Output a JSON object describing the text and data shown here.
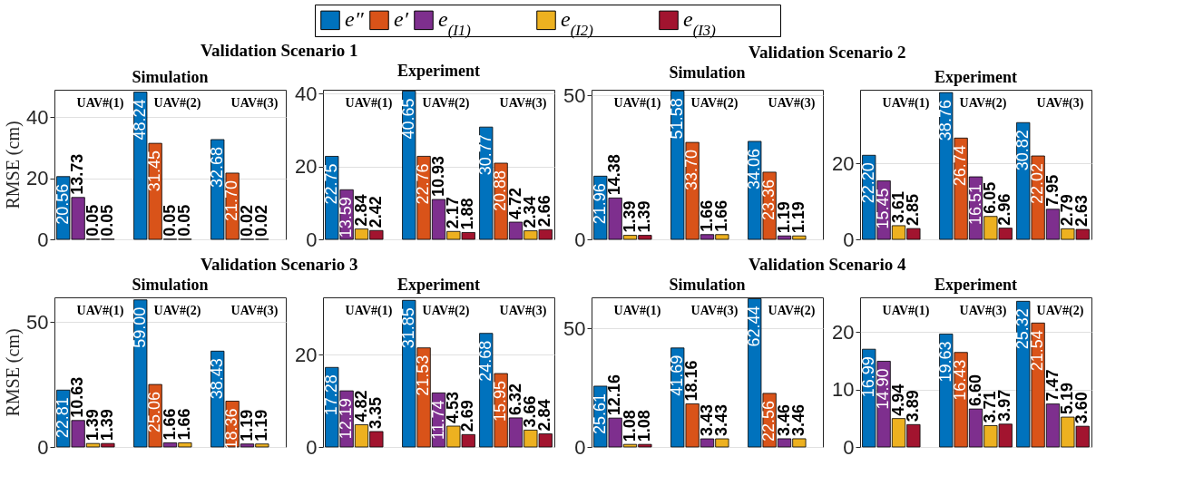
{
  "chart_data": [
    {
      "type": "bar",
      "title": "Simulation",
      "annotations": [
        "Validation Scenario 1"
      ],
      "ylabel": "RMSE (cm)",
      "categories": [
        "UAV#(1)",
        "UAV#(2)",
        "UAV#(3)"
      ],
      "ylim": [
        0,
        49
      ],
      "yticks": [
        0,
        20,
        40
      ],
      "grid": "y",
      "legend": "top",
      "series": [
        {
          "name": "e″",
          "color": "#0072bd",
          "values": [
            20.56,
            48.24,
            32.68
          ],
          "value_labels": [
            "20.56",
            "48.24",
            "32.68"
          ]
        },
        {
          "name": "e′",
          "color": "#d95319",
          "values": [
            null,
            31.45,
            21.7
          ],
          "value_labels": [
            null,
            "31.45",
            "21.70"
          ]
        },
        {
          "name": "e$_{(I1)}$",
          "color": "#7e2f8e",
          "values": [
            13.73,
            0.05,
            0.02
          ],
          "value_labels": [
            "13.73",
            "0.05",
            "0.02"
          ]
        },
        {
          "name": "e$_{(I2)}$",
          "color": "#edb120",
          "values": [
            0.05,
            0.05,
            0.02
          ],
          "value_labels": [
            "0.05",
            "0.05",
            "0.02"
          ]
        },
        {
          "name": "e$_{(I3)}$",
          "color": "#a2142f",
          "values": [
            0.05,
            null,
            null
          ],
          "value_labels": [
            "0.05",
            null,
            null
          ]
        }
      ]
    },
    {
      "type": "bar",
      "title": "Experiment",
      "categories": [
        "UAV#(1)",
        "UAV#(2)",
        "UAV#(3)"
      ],
      "ylim": [
        0,
        41
      ],
      "yticks": [
        0,
        20,
        40
      ],
      "grid": "y",
      "series": [
        {
          "name": "e″",
          "color": "#0072bd",
          "values": [
            22.75,
            40.65,
            30.77
          ],
          "value_labels": [
            "22.75",
            "40.65",
            "30.77"
          ]
        },
        {
          "name": "e′",
          "color": "#d95319",
          "values": [
            null,
            22.76,
            20.88
          ],
          "value_labels": [
            null,
            "22.76",
            "20.88"
          ]
        },
        {
          "name": "e$_{(I1)}$",
          "color": "#7e2f8e",
          "values": [
            13.59,
            10.93,
            4.72
          ],
          "value_labels": [
            "13.59",
            "10.93",
            "4.72"
          ]
        },
        {
          "name": "e$_{(I2)}$",
          "color": "#edb120",
          "values": [
            2.84,
            2.17,
            2.34
          ],
          "value_labels": [
            "2.84",
            "2.17",
            "2.34"
          ]
        },
        {
          "name": "e$_{(I3)}$",
          "color": "#a2142f",
          "values": [
            2.42,
            1.88,
            2.66
          ],
          "value_labels": [
            "2.42",
            "1.88",
            "2.66"
          ]
        }
      ]
    },
    {
      "type": "bar",
      "title": "Simulation",
      "annotations": [
        "Validation Scenario 2"
      ],
      "categories": [
        "UAV#(1)",
        "UAV#(2)",
        "UAV#(3)"
      ],
      "ylim": [
        0,
        52
      ],
      "yticks": [
        0,
        50
      ],
      "grid": "y",
      "series": [
        {
          "name": "e″",
          "color": "#0072bd",
          "values": [
            21.96,
            51.58,
            34.06
          ],
          "value_labels": [
            "21.96",
            "51.58",
            "34.06"
          ]
        },
        {
          "name": "e′",
          "color": "#d95319",
          "values": [
            null,
            33.7,
            23.36
          ],
          "value_labels": [
            null,
            "33.70",
            "23.36"
          ]
        },
        {
          "name": "e$_{(I1)}$",
          "color": "#7e2f8e",
          "values": [
            14.38,
            1.66,
            1.19
          ],
          "value_labels": [
            "14.38",
            "1.66",
            "1.19"
          ]
        },
        {
          "name": "e$_{(I2)}$",
          "color": "#edb120",
          "values": [
            1.39,
            1.66,
            1.19
          ],
          "value_labels": [
            "1.39",
            "1.66",
            "1.19"
          ]
        },
        {
          "name": "e$_{(I3)}$",
          "color": "#a2142f",
          "values": [
            1.39,
            null,
            null
          ],
          "value_labels": [
            "1.39",
            null,
            null
          ]
        }
      ]
    },
    {
      "type": "bar",
      "title": "Experiment",
      "categories": [
        "UAV#(1)",
        "UAV#(2)",
        "UAV#(3)"
      ],
      "ylim": [
        0,
        39.5
      ],
      "yticks": [
        0,
        20
      ],
      "grid": "y",
      "series": [
        {
          "name": "e″",
          "color": "#0072bd",
          "values": [
            22.2,
            38.76,
            30.82
          ],
          "value_labels": [
            "22.20",
            "38.76",
            "30.82"
          ]
        },
        {
          "name": "e′",
          "color": "#d95319",
          "values": [
            null,
            26.74,
            22.02
          ],
          "value_labels": [
            null,
            "26.74",
            "22.02"
          ]
        },
        {
          "name": "e$_{(I1)}$",
          "color": "#7e2f8e",
          "values": [
            15.45,
            16.51,
            7.95
          ],
          "value_labels": [
            "15.45",
            "16.51",
            "7.95"
          ]
        },
        {
          "name": "e$_{(I2)}$",
          "color": "#edb120",
          "values": [
            3.61,
            6.05,
            2.79
          ],
          "value_labels": [
            "3.61",
            "6.05",
            "2.79"
          ]
        },
        {
          "name": "e$_{(I3)}$",
          "color": "#a2142f",
          "values": [
            2.85,
            2.96,
            2.63
          ],
          "value_labels": [
            "2.85",
            "2.96",
            "2.63"
          ]
        }
      ]
    },
    {
      "type": "bar",
      "title": "Simulation",
      "annotations": [
        "Validation Scenario 3"
      ],
      "ylabel": "RMSE (cm)",
      "categories": [
        "UAV#(1)",
        "UAV#(2)",
        "UAV#(3)"
      ],
      "ylim": [
        0,
        60
      ],
      "yticks": [
        0,
        50
      ],
      "grid": "y",
      "series": [
        {
          "name": "e″",
          "color": "#0072bd",
          "values": [
            22.81,
            59.0,
            38.43
          ],
          "value_labels": [
            "22.81",
            "59.00",
            "38.43"
          ]
        },
        {
          "name": "e′",
          "color": "#d95319",
          "values": [
            null,
            25.06,
            18.36
          ],
          "value_labels": [
            null,
            "25.06",
            "18.36"
          ]
        },
        {
          "name": "e$_{(I1)}$",
          "color": "#7e2f8e",
          "values": [
            10.63,
            1.66,
            1.19
          ],
          "value_labels": [
            "10.63",
            "1.66",
            "1.19"
          ]
        },
        {
          "name": "e$_{(I2)}$",
          "color": "#edb120",
          "values": [
            1.39,
            1.66,
            1.19
          ],
          "value_labels": [
            "1.39",
            "1.66",
            "1.19"
          ]
        },
        {
          "name": "e$_{(I3)}$",
          "color": "#a2142f",
          "values": [
            1.39,
            null,
            null
          ],
          "value_labels": [
            "1.39",
            null,
            null
          ]
        }
      ]
    },
    {
      "type": "bar",
      "title": "Experiment",
      "categories": [
        "UAV#(1)",
        "UAV#(2)",
        "UAV#(3)"
      ],
      "ylim": [
        0,
        32.5
      ],
      "yticks": [
        0,
        20
      ],
      "grid": "y",
      "series": [
        {
          "name": "e″",
          "color": "#0072bd",
          "values": [
            17.28,
            31.85,
            24.68
          ],
          "value_labels": [
            "17.28",
            "31.85",
            "24.68"
          ]
        },
        {
          "name": "e′",
          "color": "#d95319",
          "values": [
            null,
            21.53,
            15.95
          ],
          "value_labels": [
            null,
            "21.53",
            "15.95"
          ]
        },
        {
          "name": "e$_{(I1)}$",
          "color": "#7e2f8e",
          "values": [
            12.19,
            11.74,
            6.32
          ],
          "value_labels": [
            "12.19",
            "11.74",
            "6.32"
          ]
        },
        {
          "name": "e$_{(I2)}$",
          "color": "#edb120",
          "values": [
            4.82,
            4.53,
            3.66
          ],
          "value_labels": [
            "4.82",
            "4.53",
            "3.66"
          ]
        },
        {
          "name": "e$_{(I3)}$",
          "color": "#a2142f",
          "values": [
            3.35,
            2.69,
            2.84
          ],
          "value_labels": [
            "3.35",
            "2.69",
            "2.84"
          ]
        }
      ]
    },
    {
      "type": "bar",
      "title": "Simulation",
      "annotations": [
        "Validation Scenario 4"
      ],
      "categories": [
        "UAV#(1)",
        "UAV#(3)",
        "UAV#(2)"
      ],
      "ylim": [
        0,
        63
      ],
      "yticks": [
        0,
        50
      ],
      "grid": "y",
      "series": [
        {
          "name": "e″",
          "color": "#0072bd",
          "values": [
            25.61,
            41.69,
            62.44
          ],
          "value_labels": [
            "25.61",
            "41.69",
            "62.44"
          ]
        },
        {
          "name": "e′",
          "color": "#d95319",
          "values": [
            null,
            18.16,
            22.56
          ],
          "value_labels": [
            null,
            "18.16",
            "22.56"
          ]
        },
        {
          "name": "e$_{(I1)}$",
          "color": "#7e2f8e",
          "values": [
            12.16,
            3.43,
            3.46
          ],
          "value_labels": [
            "12.16",
            "3.43",
            "3.46"
          ]
        },
        {
          "name": "e$_{(I2)}$",
          "color": "#edb120",
          "values": [
            1.08,
            3.43,
            3.46
          ],
          "value_labels": [
            "1.08",
            "3.43",
            "3.46"
          ]
        },
        {
          "name": "e$_{(I3)}$",
          "color": "#a2142f",
          "values": [
            1.08,
            null,
            null
          ],
          "value_labels": [
            "1.08",
            null,
            null
          ]
        }
      ]
    },
    {
      "type": "bar",
      "title": "Experiment",
      "categories": [
        "UAV#(1)",
        "UAV#(3)",
        "UAV#(2)"
      ],
      "ylim": [
        0,
        26
      ],
      "yticks": [
        0,
        10,
        20
      ],
      "grid": "y",
      "series": [
        {
          "name": "e″",
          "color": "#0072bd",
          "values": [
            16.99,
            19.63,
            25.32
          ],
          "value_labels": [
            "16.99",
            "19.63",
            "25.32"
          ]
        },
        {
          "name": "e′",
          "color": "#d95319",
          "values": [
            null,
            16.43,
            21.54
          ],
          "value_labels": [
            null,
            "16.43",
            "21.54"
          ]
        },
        {
          "name": "e$_{(I1)}$",
          "color": "#7e2f8e",
          "values": [
            14.9,
            6.6,
            7.47
          ],
          "value_labels": [
            "14.90",
            "6.60",
            "7.47"
          ]
        },
        {
          "name": "e$_{(I2)}$",
          "color": "#edb120",
          "values": [
            4.94,
            3.71,
            5.19
          ],
          "value_labels": [
            "4.94",
            "3.71",
            "5.19"
          ]
        },
        {
          "name": "e$_{(I3)}$",
          "color": "#a2142f",
          "values": [
            3.89,
            3.97,
            3.6
          ],
          "value_labels": [
            "3.89",
            "3.97",
            "3.60"
          ]
        }
      ]
    }
  ]
}
